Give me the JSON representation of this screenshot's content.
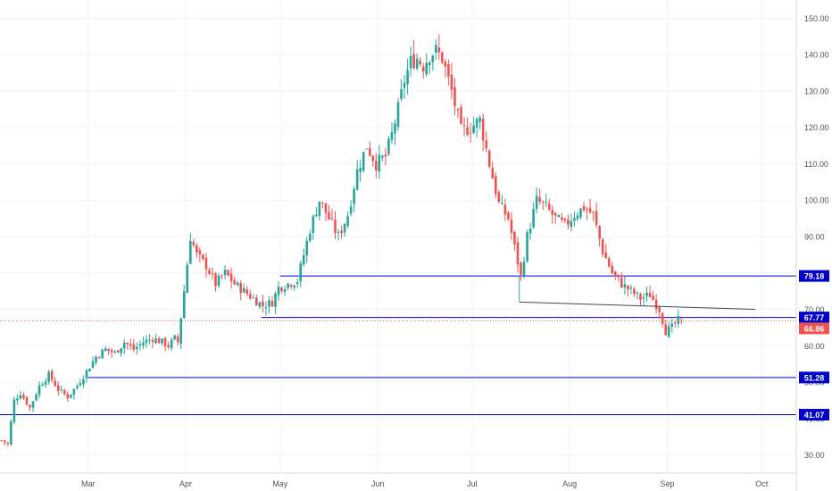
{
  "chart_data": {
    "type": "candlestick",
    "title": "",
    "xlabel": "",
    "ylabel": "",
    "ylim": [
      25,
      155
    ],
    "y_ticks": [
      30,
      40,
      50,
      60,
      70,
      80,
      90,
      100,
      110,
      120,
      130,
      140,
      150
    ],
    "y_tick_labels": [
      "30.00",
      "40.00",
      "50.00",
      "60.00",
      "70.00",
      "80.00",
      "90.00",
      "100.00",
      "110.00",
      "120.00",
      "130.00",
      "140.00",
      "150.00"
    ],
    "x_ticks": [
      {
        "label": "Mar",
        "day": 28
      },
      {
        "label": "Apr",
        "day": 59
      },
      {
        "label": "May",
        "day": 89
      },
      {
        "label": "Jun",
        "day": 120
      },
      {
        "label": "Jul",
        "day": 150
      },
      {
        "label": "Aug",
        "day": 181
      },
      {
        "label": "Sep",
        "day": 212
      },
      {
        "label": "Oct",
        "day": 242
      }
    ],
    "day_range": [
      0,
      253
    ],
    "up_color": "#26a69a",
    "down_color": "#ef5350",
    "level_color": "#0000cc",
    "current_price": 66.86,
    "current_price_label": "66.86",
    "levels": [
      {
        "value": 79.18,
        "label": "79.18",
        "from_day": 89
      },
      {
        "value": 67.77,
        "label": "67.77",
        "from_day": 83
      },
      {
        "value": 51.28,
        "label": "51.28",
        "from_day": 28
      },
      {
        "value": 41.07,
        "label": "41.07",
        "from_day": 0
      }
    ],
    "trendline": {
      "from": [
        165,
        72
      ],
      "to": [
        240,
        70
      ]
    },
    "path": [
      [
        0,
        34
      ],
      [
        2,
        33
      ],
      [
        4,
        45
      ],
      [
        6,
        47
      ],
      [
        9,
        43
      ],
      [
        12,
        49
      ],
      [
        15,
        52
      ],
      [
        18,
        48
      ],
      [
        21,
        46
      ],
      [
        24,
        49
      ],
      [
        27,
        53
      ],
      [
        30,
        57
      ],
      [
        33,
        59
      ],
      [
        36,
        58
      ],
      [
        39,
        61
      ],
      [
        42,
        59
      ],
      [
        45,
        61
      ],
      [
        48,
        62
      ],
      [
        51,
        61
      ],
      [
        53,
        60
      ],
      [
        55,
        62
      ],
      [
        56,
        61
      ],
      [
        58,
        75
      ],
      [
        60,
        90
      ],
      [
        62,
        85
      ],
      [
        65,
        82
      ],
      [
        68,
        77
      ],
      [
        71,
        80
      ],
      [
        74,
        77
      ],
      [
        77,
        75
      ],
      [
        80,
        73
      ],
      [
        83,
        71
      ],
      [
        86,
        72
      ],
      [
        88,
        76
      ],
      [
        91,
        77
      ],
      [
        94,
        78
      ],
      [
        96,
        85
      ],
      [
        98,
        92
      ],
      [
        101,
        100
      ],
      [
        104,
        95
      ],
      [
        107,
        90
      ],
      [
        110,
        96
      ],
      [
        113,
        108
      ],
      [
        116,
        115
      ],
      [
        119,
        110
      ],
      [
        122,
        112
      ],
      [
        124,
        118
      ],
      [
        126,
        125
      ],
      [
        128,
        133
      ],
      [
        130,
        138
      ],
      [
        132,
        139
      ],
      [
        134,
        137
      ],
      [
        136,
        140
      ],
      [
        138,
        141
      ],
      [
        140,
        139
      ],
      [
        143,
        130
      ],
      [
        146,
        119
      ],
      [
        149,
        120
      ],
      [
        152,
        122
      ],
      [
        155,
        110
      ],
      [
        158,
        99
      ],
      [
        161,
        95
      ],
      [
        163,
        87
      ],
      [
        165,
        79
      ],
      [
        167,
        90
      ],
      [
        170,
        100
      ],
      [
        173,
        98
      ],
      [
        176,
        95
      ],
      [
        179,
        93
      ],
      [
        182,
        96
      ],
      [
        185,
        98
      ],
      [
        188,
        96
      ],
      [
        191,
        86
      ],
      [
        194,
        80
      ],
      [
        197,
        77
      ],
      [
        200,
        75
      ],
      [
        203,
        73
      ],
      [
        206,
        74
      ],
      [
        209,
        70
      ],
      [
        211,
        64
      ],
      [
        213,
        65
      ],
      [
        215,
        67
      ],
      [
        216,
        66.86
      ]
    ]
  }
}
